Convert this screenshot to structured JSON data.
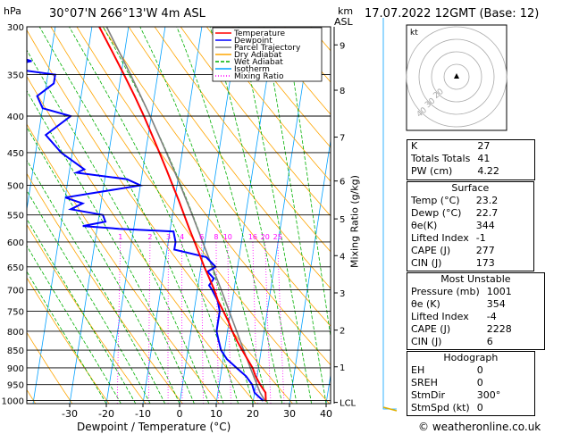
{
  "header": {
    "location": "30°07'N  266°13'W  4m  ASL",
    "datetime": "17.07.2022  12GMT  (Base: 12)",
    "hpa_label": "hPa",
    "km_label": "km",
    "asl_label": "ASL"
  },
  "watermark": "© weatheronline.co.uk",
  "colors": {
    "temperature": "#ff0000",
    "dewpoint": "#0000ff",
    "parcel": "#808080",
    "dry_adiabat": "#ffa500",
    "wet_adiabat": "#00b000",
    "isotherm": "#00a0ff",
    "mixing_ratio": "#ff00ff",
    "isobar": "#000000"
  },
  "chart_data": {
    "type": "skew-t",
    "xlabel": "Dewpoint / Temperature (°C)",
    "ylabel": "Mixing Ratio (g/kg)",
    "x_ticks": [
      "-30",
      "-20",
      "-10",
      "0",
      "10",
      "20",
      "30",
      "40"
    ],
    "x_tick_values": [
      -30,
      -20,
      -10,
      0,
      10,
      20,
      30,
      40
    ],
    "pressure_levels": [
      300,
      350,
      400,
      450,
      500,
      550,
      600,
      650,
      700,
      750,
      800,
      850,
      900,
      950,
      1000
    ],
    "km_ticks": [
      {
        "label": "9",
        "p": 318
      },
      {
        "label": "8",
        "p": 368
      },
      {
        "label": "7",
        "p": 428
      },
      {
        "label": "6",
        "p": 493
      },
      {
        "label": "5",
        "p": 557
      },
      {
        "label": "4",
        "p": 627
      },
      {
        "label": "3",
        "p": 707
      },
      {
        "label": "2",
        "p": 797
      },
      {
        "label": "1",
        "p": 897
      },
      {
        "label": "LCL",
        "p": 1006
      }
    ],
    "mixing_ratio_labels": [
      "1",
      "2",
      "3",
      "4",
      "6",
      "8",
      "10",
      "16",
      "20",
      "25"
    ],
    "mixing_ratio_values": [
      1,
      2,
      3,
      4,
      6,
      8,
      10,
      16,
      20,
      25
    ],
    "legend": [
      "Temperature",
      "Dewpoint",
      "Parcel Trajectory",
      "Dry Adiabat",
      "Wet Adiabat",
      "Isotherm",
      "Mixing Ratio"
    ],
    "temperature": [
      [
        1001,
        23.2
      ],
      [
        1000,
        23.4
      ],
      [
        975,
        23.0
      ],
      [
        950,
        21.2
      ],
      [
        925,
        19.6
      ],
      [
        900,
        18.4
      ],
      [
        875,
        16.6
      ],
      [
        850,
        14.8
      ],
      [
        825,
        13.0
      ],
      [
        800,
        11.3
      ],
      [
        775,
        9.8
      ],
      [
        750,
        8.0
      ],
      [
        725,
        6.1
      ],
      [
        700,
        4.6
      ],
      [
        675,
        2.8
      ],
      [
        650,
        0.9
      ],
      [
        625,
        -0.9
      ],
      [
        600,
        -2.8
      ],
      [
        575,
        -4.8
      ],
      [
        550,
        -6.8
      ],
      [
        525,
        -8.9
      ],
      [
        500,
        -11.2
      ],
      [
        475,
        -13.6
      ],
      [
        450,
        -16.2
      ],
      [
        425,
        -19.0
      ],
      [
        400,
        -22.0
      ],
      [
        375,
        -25.4
      ],
      [
        350,
        -29.2
      ],
      [
        325,
        -33.4
      ],
      [
        300,
        -38.0
      ]
    ],
    "dewpoint": [
      [
        1001,
        22.7
      ],
      [
        1000,
        22.6
      ],
      [
        975,
        20.0
      ],
      [
        950,
        19.0
      ],
      [
        925,
        17.0
      ],
      [
        900,
        14.0
      ],
      [
        875,
        11.0
      ],
      [
        850,
        9.0
      ],
      [
        825,
        8.0
      ],
      [
        800,
        7.0
      ],
      [
        775,
        7.0
      ],
      [
        750,
        7.0
      ],
      [
        725,
        6.0
      ],
      [
        700,
        4.0
      ],
      [
        690,
        3.0
      ],
      [
        675,
        4.0
      ],
      [
        660,
        2.0
      ],
      [
        650,
        4.0
      ],
      [
        630,
        1.0
      ],
      [
        615,
        -8.0
      ],
      [
        600,
        -8.0
      ],
      [
        580,
        -9.0
      ],
      [
        575,
        -24.0
      ],
      [
        570,
        -34.0
      ],
      [
        562,
        -28.0
      ],
      [
        550,
        -29.0
      ],
      [
        540,
        -38.0
      ],
      [
        530,
        -35.0
      ],
      [
        520,
        -40.0
      ],
      [
        500,
        -20.0
      ],
      [
        490,
        -24.0
      ],
      [
        480,
        -38.0
      ],
      [
        475,
        -36.0
      ],
      [
        450,
        -43.0
      ],
      [
        425,
        -48.0
      ],
      [
        400,
        -42.0
      ],
      [
        390,
        -50.0
      ],
      [
        375,
        -52.0
      ],
      [
        360,
        -48.0
      ],
      [
        350,
        -48.0
      ],
      [
        345,
        -57.0
      ],
      [
        340,
        -61.0
      ],
      [
        335,
        -55.0
      ],
      [
        325,
        -64.0
      ],
      [
        300,
        -70.0
      ]
    ],
    "parcel": [
      [
        1001,
        23.2
      ],
      [
        975,
        21.5
      ],
      [
        950,
        20.3
      ],
      [
        900,
        17.8
      ],
      [
        850,
        15.2
      ],
      [
        800,
        12.5
      ],
      [
        750,
        9.6
      ],
      [
        700,
        6.5
      ],
      [
        650,
        3.1
      ],
      [
        600,
        -0.6
      ],
      [
        550,
        -4.6
      ],
      [
        500,
        -9.1
      ],
      [
        450,
        -14.3
      ],
      [
        400,
        -20.3
      ],
      [
        350,
        -27.4
      ],
      [
        300,
        -36.0
      ]
    ],
    "hodograph": {
      "rings_kt": [
        10,
        20,
        30,
        40
      ],
      "ring_labels": [
        "10",
        "20",
        "30",
        "40"
      ],
      "label": "kt"
    }
  },
  "indices": {
    "top": [
      {
        "name": "K",
        "value": "27"
      },
      {
        "name": "Totals Totals",
        "value": "41"
      },
      {
        "name": "PW (cm)",
        "value": "4.22"
      }
    ],
    "surface": {
      "title": "Surface",
      "rows": [
        {
          "name": "Temp (°C)",
          "value": "23.2"
        },
        {
          "name": "Dewp (°C)",
          "value": "22.7"
        },
        {
          "name": "θe(K)",
          "value": "344"
        },
        {
          "name": "Lifted Index",
          "value": "-1"
        },
        {
          "name": "CAPE (J)",
          "value": "277"
        },
        {
          "name": "CIN (J)",
          "value": "173"
        }
      ]
    },
    "most_unstable": {
      "title": "Most Unstable",
      "rows": [
        {
          "name": "Pressure (mb)",
          "value": "1001"
        },
        {
          "name": "θe (K)",
          "value": "354"
        },
        {
          "name": "Lifted Index",
          "value": "-4"
        },
        {
          "name": "CAPE (J)",
          "value": "2228"
        },
        {
          "name": "CIN (J)",
          "value": "6"
        }
      ]
    },
    "hodograph": {
      "title": "Hodograph",
      "rows": [
        {
          "name": "EH",
          "value": "0"
        },
        {
          "name": "SREH",
          "value": "0"
        },
        {
          "name": "StmDir",
          "value": "300°"
        },
        {
          "name": "StmSpd (kt)",
          "value": "0"
        }
      ]
    }
  }
}
